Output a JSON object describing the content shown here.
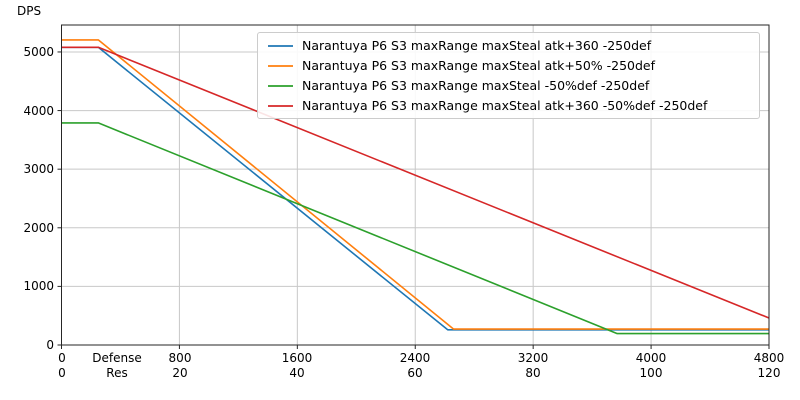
{
  "chart_data": {
    "type": "line",
    "title": "",
    "ylabel": "DPS",
    "xlabel_row1": "Defense",
    "xlabel_row2": "Res",
    "xlim": [
      0,
      4800
    ],
    "ylim": [
      0,
      5460
    ],
    "grid": true,
    "grid_color": "#c8c8c8",
    "axis_color": "#262626",
    "legend_position": "upper-right",
    "y_ticks": [
      0,
      1000,
      2000,
      3000,
      4000,
      5000
    ],
    "x_axis": {
      "defense_ticks": [
        0,
        800,
        1600,
        2400,
        3200,
        4000,
        4800
      ],
      "res_ticks": [
        0,
        20,
        40,
        60,
        80,
        100,
        120
      ]
    },
    "series": [
      {
        "name": "Narantuya P6 S3 maxRange maxSteal atk+360 -250def",
        "color": "#1f77b4",
        "points": [
          [
            0,
            5080
          ],
          [
            250,
            5080
          ],
          [
            2620,
            260
          ],
          [
            4800,
            260
          ]
        ]
      },
      {
        "name": "Narantuya P6 S3 maxRange maxSteal atk+50% -250def",
        "color": "#ff7f0e",
        "points": [
          [
            0,
            5205
          ],
          [
            250,
            5205
          ],
          [
            2660,
            272
          ],
          [
            4800,
            272
          ]
        ]
      },
      {
        "name": "Narantuya P6 S3 maxRange maxSteal -50%def -250def",
        "color": "#2ca02c",
        "points": [
          [
            0,
            3790
          ],
          [
            250,
            3790
          ],
          [
            3770,
            195
          ],
          [
            4800,
            195
          ]
        ]
      },
      {
        "name": "Narantuya P6 S3 maxRange maxSteal atk+360 -50%def -250def",
        "color": "#d62728",
        "points": [
          [
            0,
            5080
          ],
          [
            250,
            5080
          ],
          [
            4800,
            460
          ]
        ]
      }
    ]
  }
}
